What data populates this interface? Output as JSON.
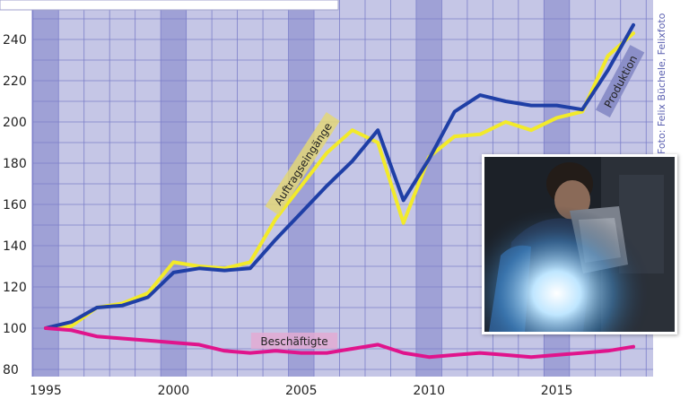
{
  "chart_data": {
    "type": "line",
    "x": [
      1995,
      1996,
      1997,
      1998,
      1999,
      2000,
      2001,
      2002,
      2003,
      2004,
      2005,
      2006,
      2007,
      2008,
      2009,
      2010,
      2011,
      2012,
      2013,
      2014,
      2015,
      2016,
      2017,
      2018
    ],
    "series": [
      {
        "name": "Auftragseingänge",
        "color": "#f2ea2a",
        "values": [
          100,
          101,
          110,
          112,
          117,
          132,
          130,
          129,
          132,
          153,
          169,
          185,
          196,
          190,
          151,
          183,
          193,
          194,
          200,
          196,
          202,
          205,
          232,
          243
        ]
      },
      {
        "name": "Produktion",
        "color": "#1f3fa6",
        "values": [
          100,
          103,
          110,
          111,
          115,
          127,
          129,
          128,
          129,
          143,
          156,
          169,
          181,
          196,
          162,
          182,
          205,
          213,
          210,
          208,
          208,
          206,
          225,
          247
        ]
      },
      {
        "name": "Beschäftigte",
        "color": "#e0148c",
        "values": [
          100,
          99,
          96,
          95,
          94,
          93,
          92,
          89,
          88,
          89,
          88,
          88,
          90,
          92,
          88,
          86,
          87,
          88,
          87,
          86,
          87,
          88,
          89,
          91
        ]
      }
    ],
    "x_tick_labels": [
      "1995",
      "2000",
      "2005",
      "2010",
      "2015"
    ],
    "y_tick_labels": [
      "80",
      "100",
      "120",
      "140",
      "160",
      "180",
      "200",
      "220",
      "240"
    ],
    "xlim": [
      1995,
      2018
    ],
    "ylim": [
      80,
      250
    ],
    "grid": true,
    "shaded_year_bands": [
      1995,
      2000,
      2005,
      2010,
      2015
    ]
  },
  "photo_credit": "Foto: Felix Büchele, Felixfoto",
  "photo_description": "welder-at-work-icon"
}
